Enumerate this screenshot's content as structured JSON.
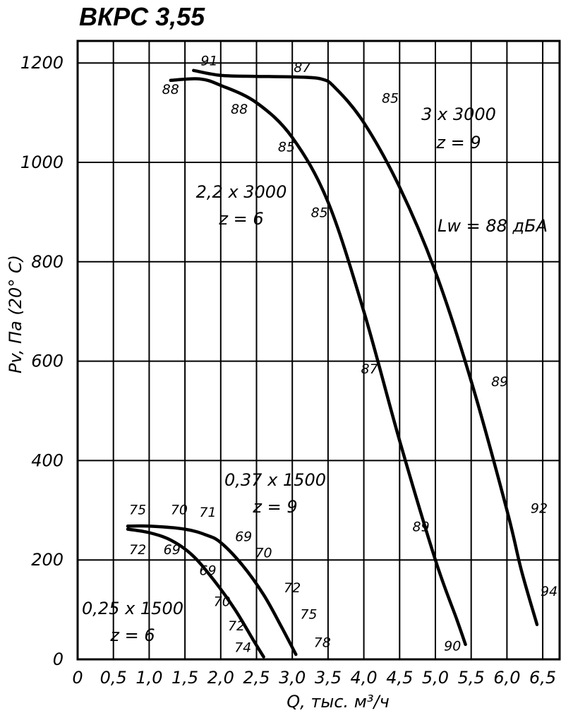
{
  "chart_data": {
    "type": "line",
    "title": "ВКРС 3,55",
    "xlabel": "Q, тыс. м³/ч",
    "ylabel": "Pv, Па (20° С)",
    "xlim": [
      0,
      6.8
    ],
    "ylim": [
      0,
      1200
    ],
    "x_ticks": [
      "0",
      "0,5",
      "1,0",
      "1,5",
      "2,0",
      "2,5",
      "3,0",
      "3,5",
      "4,0",
      "4,5",
      "5,0",
      "5,5",
      "6,0",
      "6,5"
    ],
    "x_tick_values": [
      0,
      0.5,
      1.0,
      1.5,
      2.0,
      2.5,
      3.0,
      3.5,
      4.0,
      4.5,
      5.0,
      5.5,
      6.0,
      6.5
    ],
    "y_ticks": [
      "0",
      "200",
      "400",
      "600",
      "800",
      "1000",
      "1200"
    ],
    "y_tick_values": [
      0,
      200,
      400,
      600,
      800,
      1000,
      1200
    ],
    "grid": true,
    "lw_note": "Lw = 88 дБА",
    "series": [
      {
        "label_line1": "3 x 3000",
        "label_line2": "z = 9",
        "points": [
          [
            1.62,
            1185
          ],
          [
            2.0,
            1175
          ],
          [
            2.5,
            1173
          ],
          [
            3.0,
            1172
          ],
          [
            3.4,
            1168
          ],
          [
            3.6,
            1150
          ],
          [
            4.0,
            1080
          ],
          [
            4.5,
            950
          ],
          [
            5.0,
            780
          ],
          [
            5.5,
            560
          ],
          [
            6.0,
            300
          ],
          [
            6.2,
            180
          ],
          [
            6.42,
            70
          ]
        ],
        "noise": [
          {
            "text": "91",
            "x": 1.72,
            "y": 1195
          },
          {
            "text": "87",
            "x": 3.02,
            "y": 1182
          },
          {
            "text": "85",
            "x": 4.25,
            "y": 1120
          },
          {
            "text": "89",
            "x": 5.78,
            "y": 550
          },
          {
            "text": "92",
            "x": 6.33,
            "y": 295
          },
          {
            "text": "94",
            "x": 6.47,
            "y": 128
          }
        ]
      },
      {
        "label_line1": "2,2 x 3000",
        "label_line2": "z = 6",
        "points": [
          [
            1.3,
            1165
          ],
          [
            1.7,
            1168
          ],
          [
            2.0,
            1155
          ],
          [
            2.5,
            1120
          ],
          [
            3.0,
            1050
          ],
          [
            3.5,
            920
          ],
          [
            4.0,
            700
          ],
          [
            4.5,
            440
          ],
          [
            5.0,
            200
          ],
          [
            5.3,
            80
          ],
          [
            5.42,
            30
          ]
        ],
        "noise": [
          {
            "text": "88",
            "x": 1.18,
            "y": 1138
          },
          {
            "text": "88",
            "x": 2.14,
            "y": 1098
          },
          {
            "text": "85",
            "x": 2.8,
            "y": 1022
          },
          {
            "text": "85",
            "x": 3.26,
            "y": 890
          },
          {
            "text": "87",
            "x": 3.96,
            "y": 575
          },
          {
            "text": "89",
            "x": 4.68,
            "y": 258
          },
          {
            "text": "90",
            "x": 5.12,
            "y": 18
          }
        ]
      },
      {
        "label_line1": "0,37 x 1500",
        "label_line2": "z = 9",
        "points": [
          [
            0.7,
            268
          ],
          [
            1.0,
            268
          ],
          [
            1.5,
            262
          ],
          [
            1.8,
            250
          ],
          [
            2.0,
            235
          ],
          [
            2.3,
            190
          ],
          [
            2.6,
            130
          ],
          [
            2.85,
            65
          ],
          [
            3.05,
            10
          ]
        ],
        "noise": [
          {
            "text": "75",
            "x": 0.72,
            "y": 292
          },
          {
            "text": "70",
            "x": 1.3,
            "y": 292
          },
          {
            "text": "71",
            "x": 1.7,
            "y": 287
          },
          {
            "text": "69",
            "x": 2.2,
            "y": 238
          },
          {
            "text": "70",
            "x": 2.48,
            "y": 205
          },
          {
            "text": "72",
            "x": 2.88,
            "y": 135
          },
          {
            "text": "75",
            "x": 3.11,
            "y": 82
          },
          {
            "text": "78",
            "x": 3.3,
            "y": 25
          }
        ]
      },
      {
        "label_line1": "0,25 x 1500",
        "label_line2": "z = 6",
        "points": [
          [
            0.7,
            262
          ],
          [
            1.0,
            255
          ],
          [
            1.3,
            240
          ],
          [
            1.6,
            210
          ],
          [
            1.9,
            160
          ],
          [
            2.2,
            100
          ],
          [
            2.45,
            40
          ],
          [
            2.6,
            5
          ]
        ],
        "noise": [
          {
            "text": "72",
            "x": 0.72,
            "y": 212
          },
          {
            "text": "69",
            "x": 1.2,
            "y": 212
          },
          {
            "text": "69",
            "x": 1.7,
            "y": 170
          },
          {
            "text": "70",
            "x": 1.9,
            "y": 107
          },
          {
            "text": "72",
            "x": 2.1,
            "y": 58
          },
          {
            "text": "74",
            "x": 2.19,
            "y": 15
          }
        ]
      }
    ]
  }
}
